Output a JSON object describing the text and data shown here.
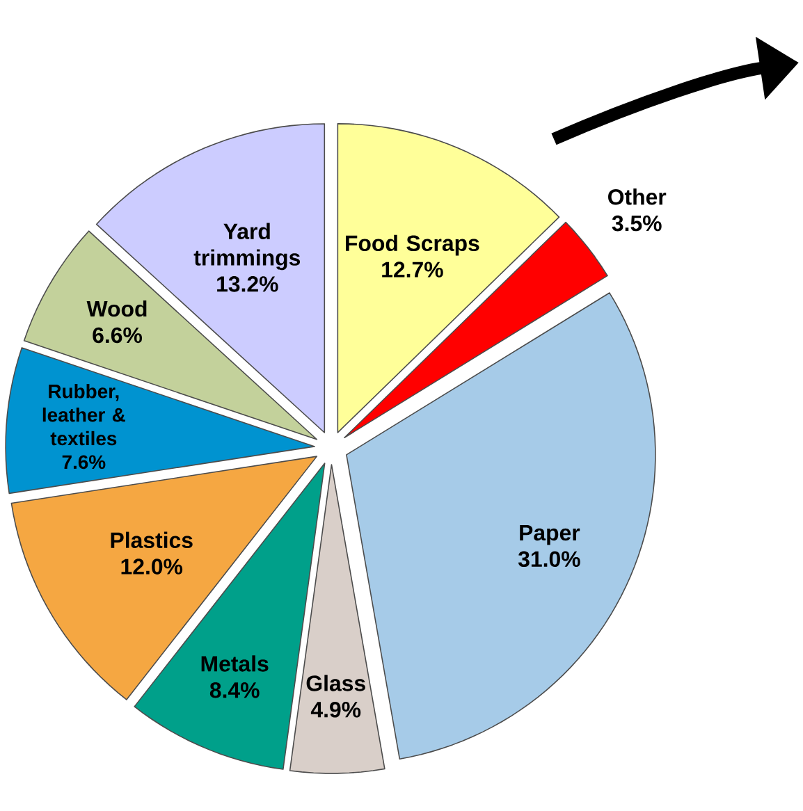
{
  "chart_data": {
    "type": "pie",
    "categories": [
      "Food Scraps",
      "Other",
      "Paper",
      "Glass",
      "Metals",
      "Plastics",
      "Rubber, leather & textiles",
      "Wood",
      "Yard trimmings"
    ],
    "values": [
      12.7,
      3.5,
      31.0,
      4.9,
      8.4,
      12.0,
      7.6,
      6.6,
      13.2
    ],
    "value_labels": [
      "12.7%",
      "3.5%",
      "31.0%",
      "4.9%",
      "8.4%",
      "12.0%",
      "7.6%",
      "6.6%",
      "13.2%"
    ],
    "colors": [
      "#ffff99",
      "#ff0000",
      "#a6cbe8",
      "#d9cfc9",
      "#00a08a",
      "#f5a742",
      "#0093d0",
      "#c3d19b",
      "#ccccff"
    ]
  }
}
